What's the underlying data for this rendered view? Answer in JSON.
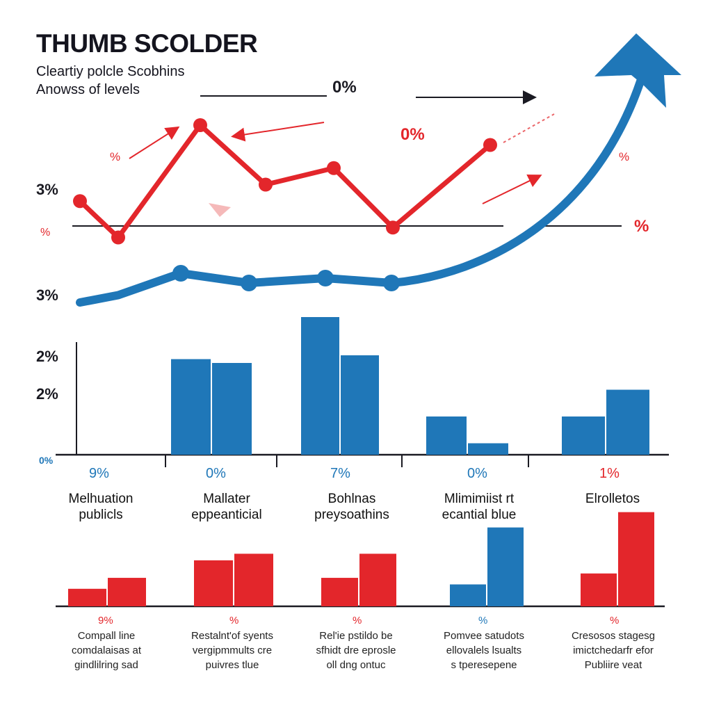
{
  "header": {
    "title": "THUMB SCOLDER",
    "subtitle_line1": "Cleartiy polcle Scobhins",
    "subtitle_line2": "Anowss of levels"
  },
  "colors": {
    "red": "#e3262b",
    "blue": "#1f77b8",
    "dark": "#1a1a22"
  },
  "line_labels": {
    "top_center": "0%",
    "red_mid": "0%",
    "right_upper": "%",
    "right_mid": "%",
    "left_small": "%",
    "left_3a": "3%",
    "left_red": "%",
    "left_3b": "3%"
  },
  "bar_axis_labels": {
    "y1": "2%",
    "y2": "2%",
    "y0": "0%"
  },
  "chart_data": [
    {
      "type": "line",
      "x": [
        0,
        1,
        2,
        3,
        4,
        5,
        6
      ],
      "series": [
        {
          "color": "#e3262b",
          "values": [
            1.7,
            0.6,
            4.0,
            2.2,
            2.7,
            0.9,
            3.4
          ]
        },
        {
          "color": "#1f77b8",
          "values": [
            1.0,
            1.3,
            2.2,
            1.8,
            2.0,
            1.8,
            9.8
          ]
        }
      ]
    },
    {
      "type": "bar",
      "series_color": "#1f77b8",
      "categories": [
        "Melhuation publicls",
        "Mallater eppeanticial",
        "Bohlnas preysoathins",
        "Mlimimiist rt ecantial blue",
        "Elrolletos"
      ],
      "pair_values": [
        [
          0,
          0
        ],
        [
          2.5,
          2.4
        ],
        [
          3.6,
          2.6
        ],
        [
          1.0,
          0.3
        ],
        [
          1.0,
          1.7
        ]
      ],
      "value_labels": [
        "9%",
        "0%",
        "7%",
        "0%",
        "1%"
      ]
    },
    {
      "type": "bar",
      "categories": [
        "Compall line comdalaisas at gindlilring sad",
        "Restalnt'of syents vergipmmults cre puivres tlue",
        "Rel'ie pstildo be sfhidt dre eprosle oll dng ontuc",
        "Pomvee satudots ellovalels lsualts s tperesepene",
        "Cresosos stagesg imictchedarfr efor Publiire veat"
      ],
      "pair_values": [
        [
          0.8,
          1.3
        ],
        [
          2.1,
          2.4
        ],
        [
          1.3,
          2.4
        ],
        [
          1.0,
          3.6
        ],
        [
          1.5,
          4.3
        ]
      ],
      "pair_colors": [
        [
          "#e3262b",
          "#e3262b"
        ],
        [
          "#e3262b",
          "#e3262b"
        ],
        [
          "#e3262b",
          "#e3262b"
        ],
        [
          "#1f77b8",
          "#1f77b8"
        ],
        [
          "#e3262b",
          "#e3262b"
        ]
      ],
      "value_labels": [
        "9%",
        "%",
        "%",
        "%",
        "%"
      ]
    }
  ]
}
